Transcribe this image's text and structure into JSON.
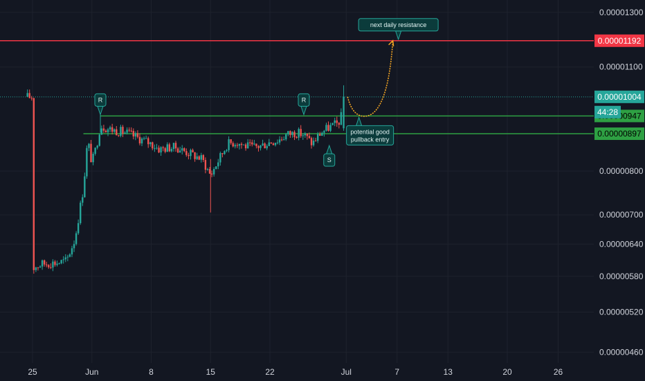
{
  "chart_data": {
    "type": "candlestick",
    "y_scale": "log",
    "ylim": [
      4.45e-06,
      1.35e-05
    ],
    "y_ticks": [
      "0.00001300",
      "0.00001100",
      "0.00000800",
      "0.00000700",
      "0.00000640",
      "0.00000580",
      "0.00000520",
      "0.00000460"
    ],
    "x_ticks": [
      {
        "label": "25",
        "day": 0
      },
      {
        "label": "Jun",
        "day": 7
      },
      {
        "label": "8",
        "day": 14
      },
      {
        "label": "15",
        "day": 21
      },
      {
        "label": "22",
        "day": 28
      },
      {
        "label": "Jul",
        "day": 37
      },
      {
        "label": "7",
        "day": 43
      },
      {
        "label": "13",
        "day": 49
      },
      {
        "label": "20",
        "day": 56
      },
      {
        "label": "26",
        "day": 62
      }
    ],
    "price_path": [
      [
        0,
        5.95e-06
      ],
      [
        1,
        6.02e-06
      ],
      [
        2,
        6.04e-06
      ],
      [
        3,
        6.05e-06
      ],
      [
        4,
        6.08e-06
      ],
      [
        5,
        6.5e-06
      ],
      [
        6,
        7.6e-06
      ],
      [
        6.5,
        8.8e-06
      ],
      [
        7,
        8.2e-06
      ],
      [
        7.5,
        8.6e-06
      ],
      [
        8,
        9.2e-06
      ],
      [
        9,
        9.1e-06
      ],
      [
        10,
        9.05e-06
      ],
      [
        11,
        9e-06
      ],
      [
        12,
        8.9e-06
      ],
      [
        13,
        8.8e-06
      ],
      [
        14,
        8.7e-06
      ],
      [
        15,
        8.55e-06
      ],
      [
        16,
        8.6e-06
      ],
      [
        17,
        8.6e-06
      ],
      [
        18,
        8.5e-06
      ],
      [
        19,
        8.4e-06
      ],
      [
        20,
        8.3e-06
      ],
      [
        21,
        7.9e-06
      ],
      [
        22,
        8.3e-06
      ],
      [
        23,
        8.7e-06
      ],
      [
        24,
        8.75e-06
      ],
      [
        25,
        8.65e-06
      ],
      [
        26,
        8.6e-06
      ],
      [
        27,
        8.65e-06
      ],
      [
        28,
        8.75e-06
      ],
      [
        29,
        8.8e-06
      ],
      [
        30,
        8.95e-06
      ],
      [
        31,
        9e-06
      ],
      [
        32,
        8.95e-06
      ],
      [
        33,
        8.7e-06
      ],
      [
        34,
        9e-06
      ],
      [
        35,
        9.15e-06
      ],
      [
        36,
        9.25e-06
      ],
      [
        36.5,
        9.5e-06
      ],
      [
        37,
        1.004e-05
      ]
    ],
    "horizontal_levels": [
      {
        "price": 1.192e-05,
        "label": "0.00001192",
        "color": "#f23645",
        "tag_text_color": "#ffffff"
      },
      {
        "price": 1.004e-05,
        "label": "0.00001004",
        "color": "#26a69a",
        "tag_text_color": "#ffffff"
      },
      {
        "price": 9.47e-06,
        "label": "0.00000947",
        "color": "#2ea043",
        "tag_text_color": "#000000"
      },
      {
        "price": 8.97e-06,
        "label": "0.00000897",
        "color": "#2ea043",
        "tag_text_color": "#000000"
      }
    ],
    "countdown": "44:28",
    "annotations": [
      {
        "text": "R",
        "day": 8,
        "price": 9.47e-06
      },
      {
        "text": "R",
        "day": 32,
        "price": 9.47e-06
      },
      {
        "text": "S",
        "day": 35,
        "price": 8.8e-06
      },
      {
        "text": "potential good pullback entry",
        "day": 38.5,
        "price": 9.47e-06
      },
      {
        "text": "next daily resistance",
        "day": 42.5,
        "price": 1.192e-05
      }
    ],
    "projection": [
      [
        37,
        1.004e-05
      ],
      [
        39.5,
        9.47e-06
      ],
      [
        42.5,
        1.192e-05
      ]
    ],
    "colors": {
      "up": "#26a69a",
      "down": "#ef5350",
      "background": "#131722",
      "grid": "#1e222d",
      "text": "#d1d4dc",
      "projection": "#f5a623",
      "note_fill": "#0b3b3b",
      "note_stroke": "#26a69a"
    }
  }
}
